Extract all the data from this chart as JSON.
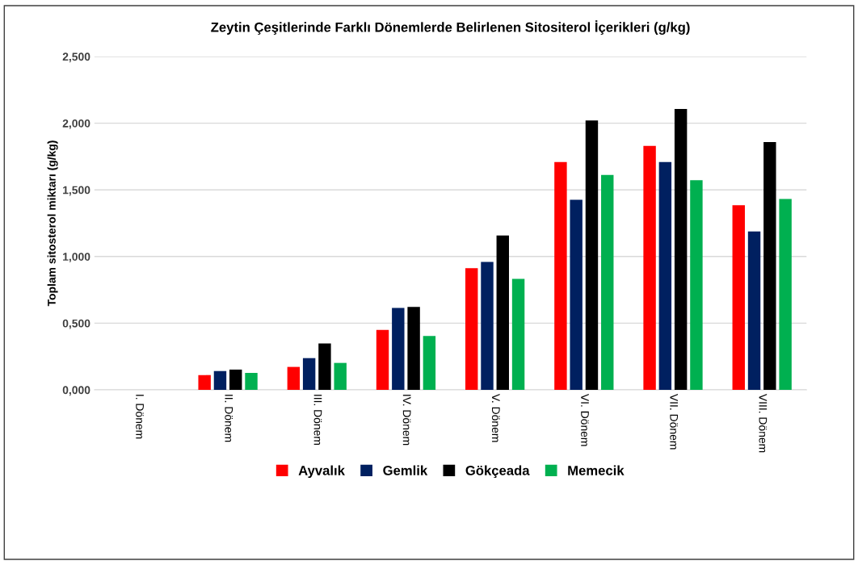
{
  "chart_data": {
    "type": "bar",
    "title": "Zeytin Çeşitlerinde Farklı Dönemlerde Belirlenen Sitositerol İçerikleri (g/kg)",
    "ylabel": "Toplam sitosterol miktarı (g/kg)",
    "categories": [
      "I. Dönem",
      "II. Dönem",
      "III. Dönem",
      "IV. Dönem",
      "V. Dönem",
      "VI. Dönem",
      "VII. Dönem",
      "VIII. Dönem"
    ],
    "series": [
      {
        "name": "Ayvalık",
        "color": "#ff0000",
        "values": [
          0,
          0.111,
          0.172,
          0.449,
          0.913,
          1.708,
          1.829,
          1.384
        ]
      },
      {
        "name": "Gemlik",
        "color": "#002060",
        "values": [
          0,
          0.141,
          0.238,
          0.614,
          0.96,
          1.425,
          1.708,
          1.188
        ]
      },
      {
        "name": "Gökçeada",
        "color": "#000000",
        "values": [
          0,
          0.152,
          0.348,
          0.622,
          1.158,
          2.021,
          2.106,
          1.859
        ]
      },
      {
        "name": "Memecik",
        "color": "#00b050",
        "values": [
          0,
          0.127,
          0.202,
          0.404,
          0.833,
          1.611,
          1.572,
          1.431
        ]
      }
    ],
    "ylim": [
      0,
      2.5
    ],
    "yticks": [
      {
        "value": 0,
        "label": "0,000"
      },
      {
        "value": 0.5,
        "label": "0,500"
      },
      {
        "value": 1,
        "label": "1,000"
      },
      {
        "value": 1.5,
        "label": "1,500"
      },
      {
        "value": 2,
        "label": "2,000"
      },
      {
        "value": 2.5,
        "label": "2,500"
      }
    ],
    "grid": "y",
    "legend": "bottom"
  }
}
